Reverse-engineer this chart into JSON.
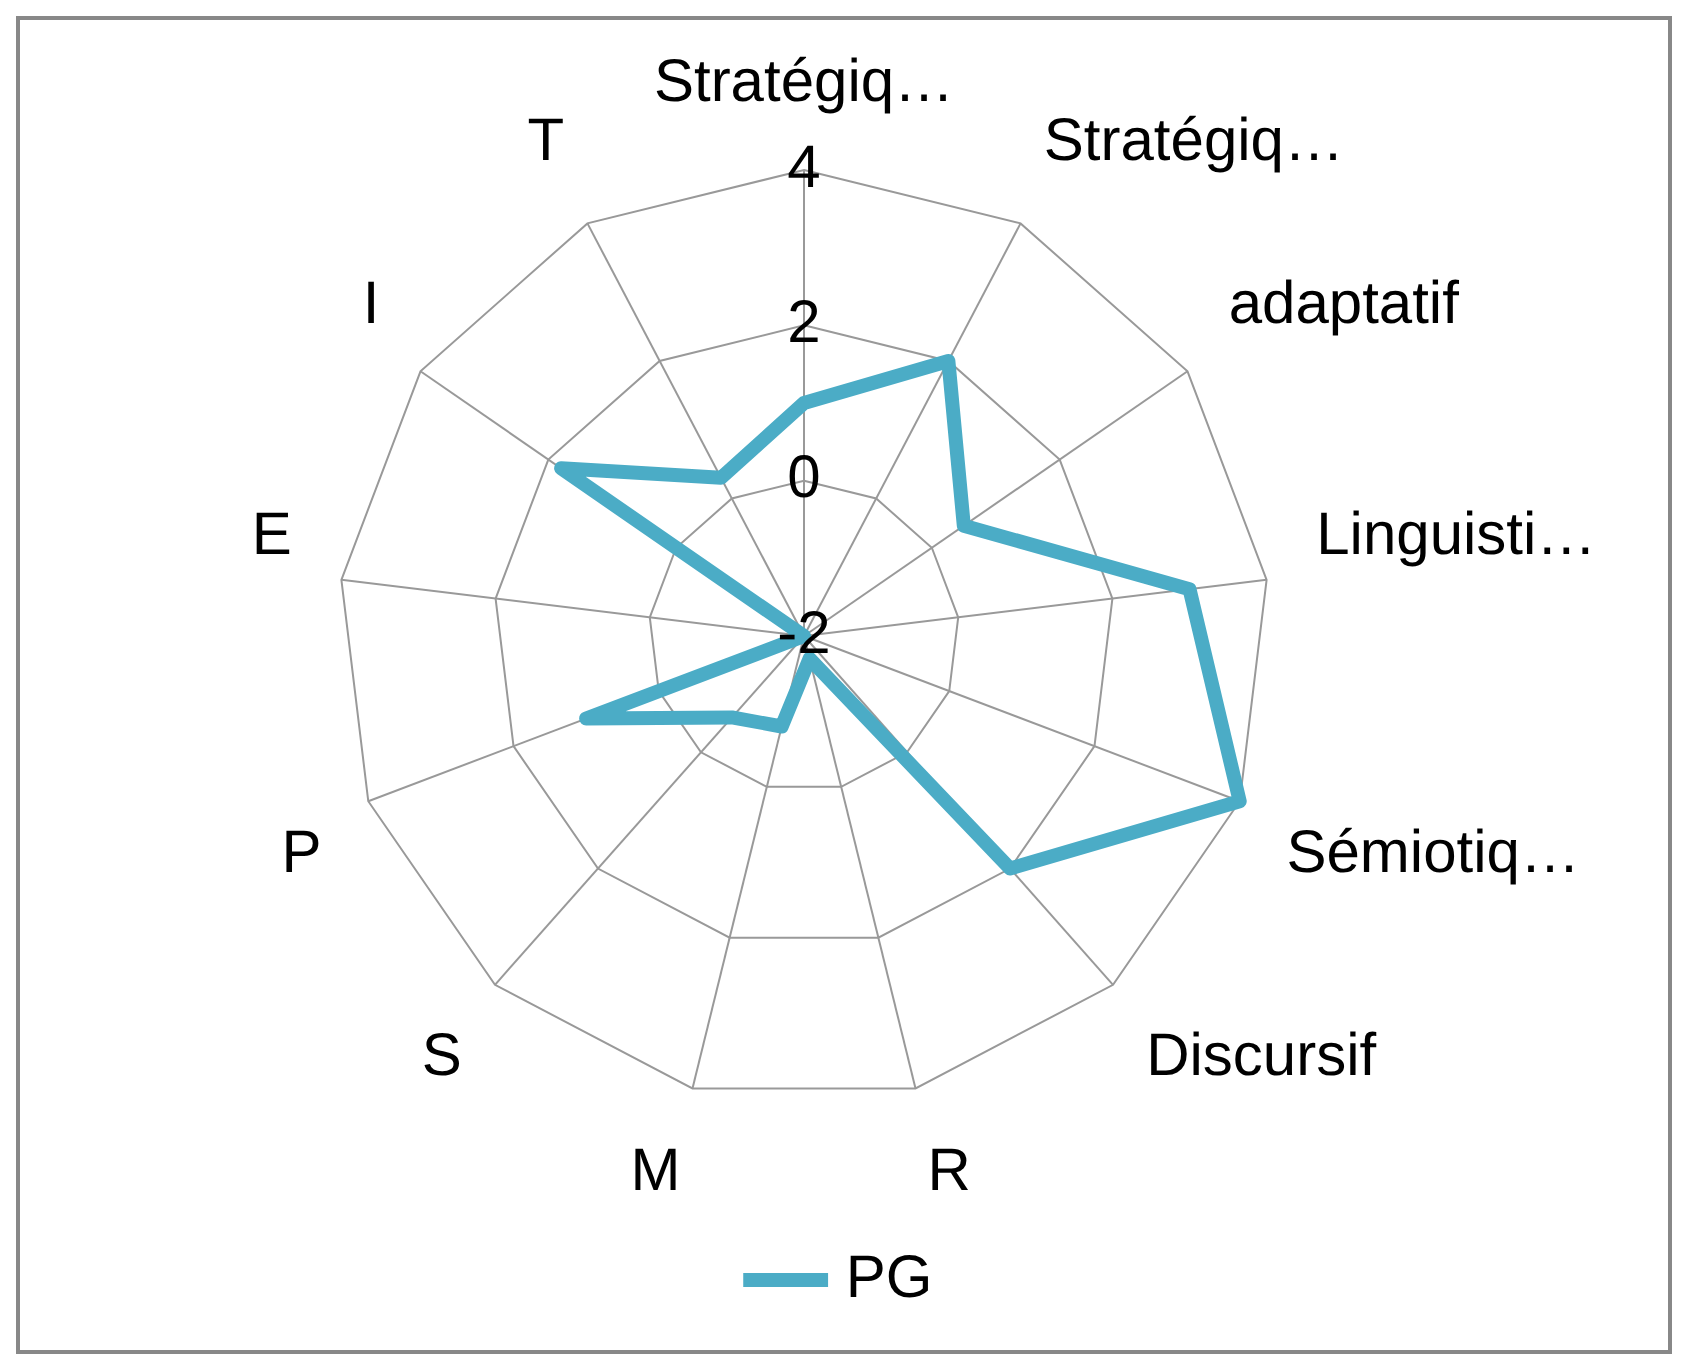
{
  "chart_data": {
    "type": "radar",
    "categories": [
      "Stratégiq…",
      "Stratégiq…",
      "adaptatif",
      "Linguisti…",
      "Sémiotiq…",
      "Discursif",
      "R",
      "M",
      "S",
      "P",
      "E",
      "I",
      "T"
    ],
    "series": [
      {
        "name": "PG",
        "color": "#4bacc6",
        "values": [
          1,
          2,
          0.5,
          3,
          4,
          2,
          -1.7,
          -0.8,
          -0.6,
          1,
          -2,
          1.8,
          0.3
        ]
      }
    ],
    "ylim": [
      -2,
      4
    ],
    "yticks": [
      -2,
      0,
      2,
      4
    ],
    "grid": true,
    "legend": "bottom",
    "marker": "none"
  }
}
